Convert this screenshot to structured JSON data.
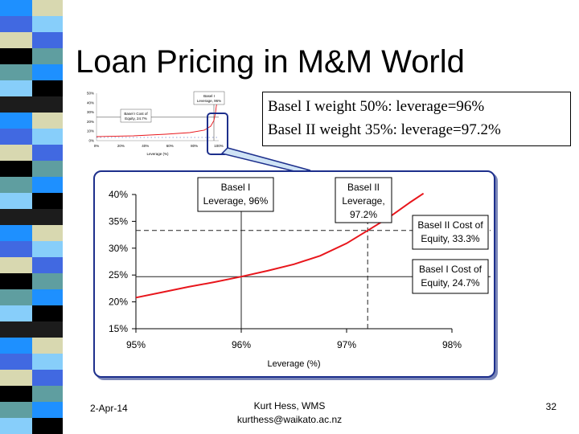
{
  "slide": {
    "title": "Loan Pricing in M&M World",
    "notes": [
      "Basel I weight 50%:  leverage=96%",
      "Basel II weight 35%: leverage=97.2%"
    ],
    "footer": {
      "date": "2-Apr-14",
      "author": "Kurt Hess, WMS",
      "email": "kurthess@waikato.ac.nz",
      "page": "32"
    },
    "colors": {
      "stripe": [
        "#1e90ff",
        "#4169e1",
        "#d8d8b0",
        "#000000",
        "#5f9ea0",
        "#87cefa",
        "#1c1c1c"
      ],
      "curve": "#e8161c",
      "chart_border": "#1d2f8c"
    }
  },
  "thumbnail": {
    "y_ticks": [
      "50%",
      "40%",
      "30%",
      "20%",
      "10%",
      "0%"
    ],
    "x_ticks": [
      "0%",
      "20%",
      "40%",
      "60%",
      "80%",
      "100%"
    ],
    "xlabel": "Leverage (%)",
    "label_basel1": [
      "Basel I",
      "Leverage, 96%"
    ],
    "label_cost": [
      "Basel I Cost of",
      "Equity, 24.7%"
    ]
  },
  "chart_data": {
    "type": "line",
    "xlabel": "Leverage (%)",
    "xlim": [
      95,
      98
    ],
    "ylim": [
      15,
      40
    ],
    "x_ticks": [
      "95%",
      "96%",
      "97%",
      "98%"
    ],
    "y_ticks": [
      "15%",
      "20%",
      "25%",
      "30%",
      "35%",
      "40%"
    ],
    "grid": false,
    "series": [
      {
        "x": [
          95.0,
          95.25,
          95.5,
          95.75,
          96.0,
          96.25,
          96.5,
          96.75,
          97.0,
          97.2,
          97.4,
          97.6,
          97.73
        ],
        "y": [
          20.8,
          21.8,
          22.8,
          23.7,
          24.7,
          25.8,
          27.0,
          28.6,
          30.9,
          33.3,
          35.7,
          38.5,
          40.2
        ]
      }
    ],
    "reference_lines": [
      {
        "axis": "x",
        "value": 96.0,
        "style": "solid"
      },
      {
        "axis": "y",
        "value": 24.7,
        "style": "solid"
      },
      {
        "axis": "x",
        "value": 97.2,
        "style": "dashed"
      },
      {
        "axis": "y",
        "value": 33.3,
        "style": "dashed"
      }
    ],
    "annotations": [
      {
        "lines": [
          "Basel I",
          "Leverage, 96%"
        ]
      },
      {
        "lines": [
          "Basel II",
          "Leverage,",
          "97.2%"
        ]
      },
      {
        "lines": [
          "Basel II Cost of",
          "Equity, 33.3%"
        ]
      },
      {
        "lines": [
          "Basel I Cost of",
          "Equity, 24.7%"
        ]
      }
    ]
  }
}
